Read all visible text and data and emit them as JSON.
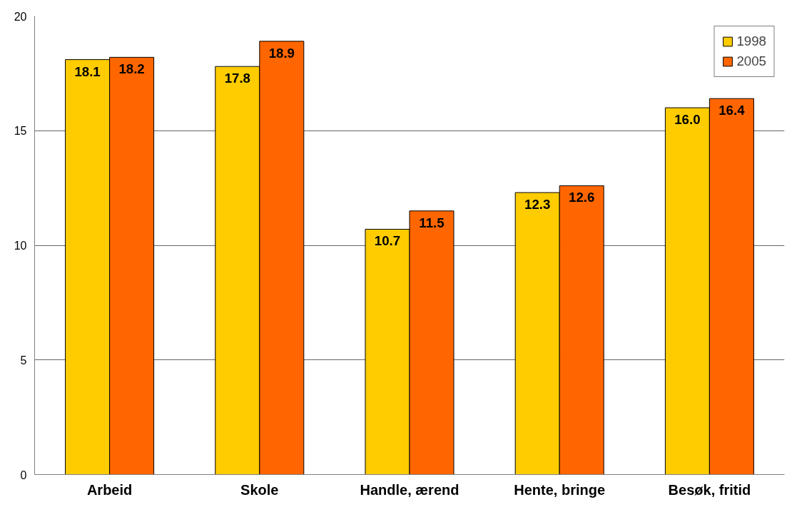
{
  "chart_data": {
    "type": "bar",
    "categories": [
      "Arbeid",
      "Skole",
      "Handle, ærend",
      "Hente, bringe",
      "Besøk, fritid"
    ],
    "series": [
      {
        "name": "1998",
        "color": "#ffcc00",
        "values": [
          18.1,
          17.8,
          10.7,
          12.3,
          16.0
        ],
        "value_labels": [
          "18.1",
          "17.8",
          "10.7",
          "12.3",
          "16.0"
        ]
      },
      {
        "name": "2005",
        "color": "#ff6600",
        "values": [
          18.2,
          18.9,
          11.5,
          12.6,
          16.4
        ],
        "value_labels": [
          "18.2",
          "18.9",
          "11.5",
          "12.6",
          "16.4"
        ]
      }
    ],
    "ylim": [
      0,
      20
    ],
    "yticks": [
      0,
      5,
      10,
      15,
      20
    ],
    "grid": "y",
    "legend": "top right"
  }
}
